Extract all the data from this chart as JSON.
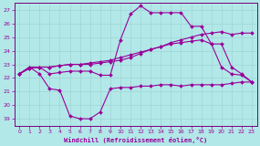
{
  "xlabel": "Windchill (Refroidissement éolien,°C)",
  "background_color": "#b2e8e8",
  "grid_color": "#9fd4d4",
  "line_color": "#990099",
  "spine_color": "#7a007a",
  "xlim": [
    -0.5,
    23.5
  ],
  "ylim": [
    18.5,
    27.5
  ],
  "xticks": [
    0,
    1,
    2,
    3,
    4,
    5,
    6,
    7,
    8,
    9,
    10,
    11,
    12,
    13,
    14,
    15,
    16,
    17,
    18,
    19,
    20,
    21,
    22,
    23
  ],
  "yticks": [
    19,
    20,
    21,
    22,
    23,
    24,
    25,
    26,
    27
  ],
  "line1_x": [
    0,
    1,
    2,
    3,
    4,
    5,
    6,
    7,
    8,
    9,
    10,
    11,
    12,
    13,
    14,
    15,
    16,
    17,
    18,
    19,
    20,
    21,
    22,
    23
  ],
  "line1_y": [
    22.3,
    22.8,
    22.3,
    21.2,
    21.1,
    19.2,
    19.0,
    19.0,
    19.5,
    21.2,
    21.3,
    21.3,
    21.4,
    21.4,
    21.5,
    21.5,
    21.4,
    21.5,
    21.5,
    21.5,
    21.5,
    21.6,
    21.7,
    21.7
  ],
  "line2_x": [
    0,
    1,
    2,
    3,
    4,
    5,
    6,
    7,
    8,
    9,
    10,
    11,
    12,
    13,
    14,
    15,
    16,
    17,
    18,
    19,
    20,
    21,
    22,
    23
  ],
  "line2_y": [
    22.3,
    22.8,
    22.8,
    22.3,
    22.4,
    22.5,
    22.5,
    22.5,
    22.2,
    22.2,
    24.8,
    26.7,
    27.3,
    26.8,
    26.8,
    26.8,
    26.8,
    25.8,
    25.8,
    24.5,
    22.8,
    22.3,
    22.2,
    21.7
  ],
  "line3_x": [
    0,
    1,
    2,
    3,
    4,
    5,
    6,
    7,
    8,
    9,
    10,
    11,
    12,
    13,
    14,
    15,
    16,
    17,
    18,
    19,
    20,
    21,
    22,
    23
  ],
  "line3_y": [
    22.3,
    22.7,
    22.8,
    22.8,
    22.9,
    23.0,
    23.0,
    23.0,
    23.1,
    23.2,
    23.3,
    23.5,
    23.8,
    24.1,
    24.3,
    24.6,
    24.8,
    25.0,
    25.2,
    25.3,
    25.4,
    25.2,
    25.3,
    25.3
  ],
  "line4_x": [
    0,
    1,
    2,
    3,
    4,
    5,
    6,
    7,
    8,
    9,
    10,
    11,
    12,
    13,
    14,
    15,
    16,
    17,
    18,
    19,
    20,
    21,
    22,
    23
  ],
  "line4_y": [
    22.3,
    22.7,
    22.8,
    22.8,
    22.9,
    23.0,
    23.0,
    23.1,
    23.2,
    23.3,
    23.5,
    23.7,
    23.9,
    24.1,
    24.3,
    24.5,
    24.6,
    24.7,
    24.8,
    24.5,
    24.5,
    22.8,
    22.3,
    21.7
  ]
}
